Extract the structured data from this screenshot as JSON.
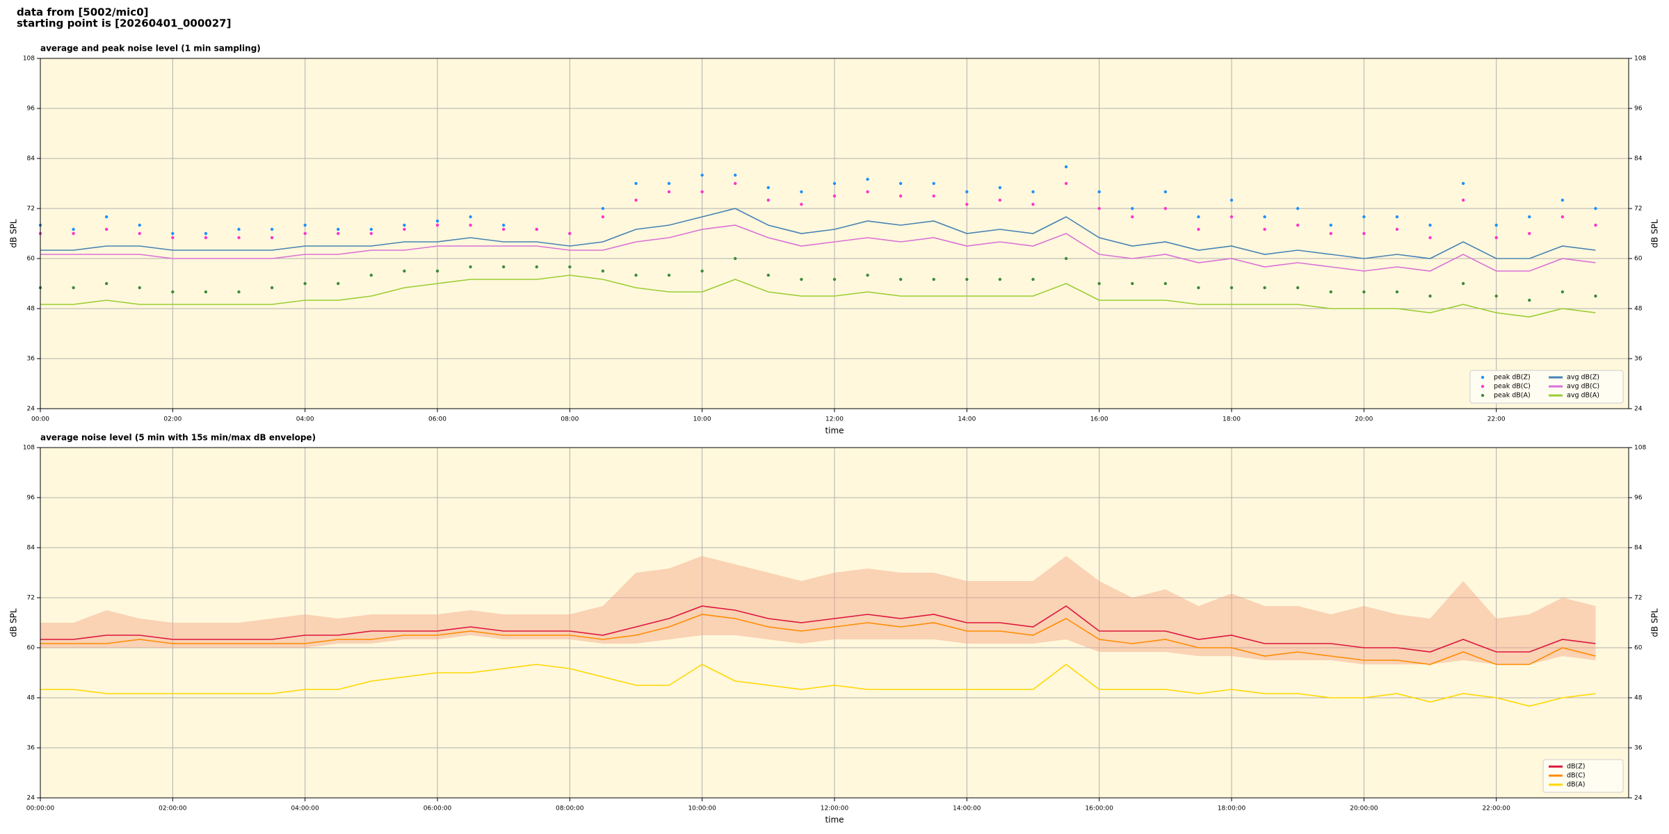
{
  "header": {
    "line1": "data from [5002/mic0]",
    "line2": "starting point is [20260401_000027]"
  },
  "chart_data": [
    {
      "type": "line",
      "title": "average and peak noise level (1 min sampling)",
      "xlabel": "time",
      "ylabel": "dB SPL",
      "xlim": [
        0,
        24
      ],
      "ylim": [
        24,
        108
      ],
      "yticks": [
        24,
        36,
        48,
        60,
        72,
        84,
        96,
        108
      ],
      "xticks": [
        {
          "value": 0,
          "label": "00:00"
        },
        {
          "value": 2,
          "label": "02:00"
        },
        {
          "value": 4,
          "label": "04:00"
        },
        {
          "value": 6,
          "label": "06:00"
        },
        {
          "value": 8,
          "label": "08:00"
        },
        {
          "value": 10,
          "label": "10:00"
        },
        {
          "value": 12,
          "label": "12:00"
        },
        {
          "value": 14,
          "label": "14:00"
        },
        {
          "value": 16,
          "label": "16:00"
        },
        {
          "value": 18,
          "label": "18:00"
        },
        {
          "value": 20,
          "label": "20:00"
        },
        {
          "value": 22,
          "label": "22:00"
        }
      ],
      "grid": true,
      "legend": "lower right",
      "legend_columns": 2,
      "x": [
        0,
        0.5,
        1,
        1.5,
        2,
        2.5,
        3,
        3.5,
        4,
        4.5,
        5,
        5.5,
        6,
        6.5,
        7,
        7.5,
        8,
        8.5,
        9,
        9.5,
        10,
        10.5,
        11,
        11.5,
        12,
        12.5,
        13,
        13.5,
        14,
        14.5,
        15,
        15.5,
        16,
        16.5,
        17,
        17.5,
        18,
        18.5,
        19,
        19.5,
        20,
        20.5,
        21,
        21.5,
        22,
        22.5,
        23,
        23.5
      ],
      "series": [
        {
          "name": "peak dB(Z)",
          "style": "points",
          "color": "#1e90ff",
          "values": [
            68,
            67,
            70,
            68,
            66,
            66,
            67,
            67,
            68,
            67,
            67,
            68,
            69,
            70,
            68,
            67,
            66,
            72,
            78,
            78,
            80,
            80,
            77,
            76,
            78,
            79,
            78,
            78,
            76,
            77,
            76,
            82,
            76,
            72,
            76,
            70,
            74,
            70,
            72,
            68,
            70,
            70,
            68,
            78,
            68,
            70,
            74,
            72
          ]
        },
        {
          "name": "peak dB(C)",
          "style": "points",
          "color": "#ff33cc",
          "values": [
            66,
            66,
            67,
            66,
            65,
            65,
            65,
            65,
            66,
            66,
            66,
            67,
            68,
            68,
            67,
            67,
            66,
            70,
            74,
            76,
            76,
            78,
            74,
            73,
            75,
            76,
            75,
            75,
            73,
            74,
            73,
            78,
            72,
            70,
            72,
            67,
            70,
            67,
            68,
            66,
            66,
            67,
            65,
            74,
            65,
            66,
            70,
            68
          ]
        },
        {
          "name": "peak dB(A)",
          "style": "points",
          "color": "#3d8a3d",
          "values": [
            53,
            53,
            54,
            53,
            52,
            52,
            52,
            53,
            54,
            54,
            56,
            57,
            57,
            58,
            58,
            58,
            58,
            57,
            56,
            56,
            57,
            60,
            56,
            55,
            55,
            56,
            55,
            55,
            55,
            55,
            55,
            60,
            54,
            54,
            54,
            53,
            53,
            53,
            53,
            52,
            52,
            52,
            51,
            54,
            51,
            50,
            52,
            51
          ]
        },
        {
          "name": "avg dB(Z)",
          "style": "line",
          "color": "#4682b4",
          "values": [
            62,
            62,
            63,
            63,
            62,
            62,
            62,
            62,
            63,
            63,
            63,
            64,
            64,
            65,
            64,
            64,
            63,
            64,
            67,
            68,
            70,
            72,
            68,
            66,
            67,
            69,
            68,
            69,
            66,
            67,
            66,
            70,
            65,
            63,
            64,
            62,
            63,
            61,
            62,
            61,
            60,
            61,
            60,
            64,
            60,
            60,
            63,
            62
          ]
        },
        {
          "name": "avg dB(C)",
          "style": "line",
          "color": "#da70d6",
          "values": [
            61,
            61,
            61,
            61,
            60,
            60,
            60,
            60,
            61,
            61,
            62,
            62,
            63,
            63,
            63,
            63,
            62,
            62,
            64,
            65,
            67,
            68,
            65,
            63,
            64,
            65,
            64,
            65,
            63,
            64,
            63,
            66,
            61,
            60,
            61,
            59,
            60,
            58,
            59,
            58,
            57,
            58,
            57,
            61,
            57,
            57,
            60,
            59
          ]
        },
        {
          "name": "avg dB(A)",
          "style": "line",
          "color": "#9acd32",
          "values": [
            49,
            49,
            50,
            49,
            49,
            49,
            49,
            49,
            50,
            50,
            51,
            53,
            54,
            55,
            55,
            55,
            56,
            55,
            53,
            52,
            52,
            55,
            52,
            51,
            51,
            52,
            51,
            51,
            51,
            51,
            51,
            54,
            50,
            50,
            50,
            49,
            49,
            49,
            49,
            48,
            48,
            48,
            47,
            49,
            47,
            46,
            48,
            47
          ]
        }
      ]
    },
    {
      "type": "line",
      "title": "average noise level (5 min with 15s min/max dB envelope)",
      "xlabel": "time",
      "ylabel": "dB SPL",
      "xlim": [
        0,
        24
      ],
      "ylim": [
        24,
        108
      ],
      "yticks": [
        24,
        36,
        48,
        60,
        72,
        84,
        96,
        108
      ],
      "xticks": [
        {
          "value": 0,
          "label": "00:00:00"
        },
        {
          "value": 2,
          "label": "02:00:00"
        },
        {
          "value": 4,
          "label": "04:00:00"
        },
        {
          "value": 6,
          "label": "06:00:00"
        },
        {
          "value": 8,
          "label": "08:00:00"
        },
        {
          "value": 10,
          "label": "10:00:00"
        },
        {
          "value": 12,
          "label": "12:00:00"
        },
        {
          "value": 14,
          "label": "14:00:00"
        },
        {
          "value": 16,
          "label": "16:00:00"
        },
        {
          "value": 18,
          "label": "18:00:00"
        },
        {
          "value": 20,
          "label": "20:00:00"
        },
        {
          "value": 22,
          "label": "22:00:00"
        }
      ],
      "grid": true,
      "legend": "lower right",
      "legend_columns": 1,
      "x": [
        0,
        0.5,
        1,
        1.5,
        2,
        2.5,
        3,
        3.5,
        4,
        4.5,
        5,
        5.5,
        6,
        6.5,
        7,
        7.5,
        8,
        8.5,
        9,
        9.5,
        10,
        10.5,
        11,
        11.5,
        12,
        12.5,
        13,
        13.5,
        14,
        14.5,
        15,
        15.5,
        16,
        16.5,
        17,
        17.5,
        18,
        18.5,
        19,
        19.5,
        20,
        20.5,
        21,
        21.5,
        22,
        22.5,
        23,
        23.5
      ],
      "envelope": {
        "color": "#f4a582",
        "low": [
          60,
          60,
          60,
          60,
          60,
          60,
          60,
          60,
          60,
          61,
          61,
          62,
          62,
          63,
          62,
          62,
          62,
          61,
          61,
          62,
          63,
          63,
          62,
          61,
          62,
          62,
          62,
          62,
          61,
          61,
          61,
          62,
          59,
          59,
          59,
          58,
          58,
          57,
          57,
          57,
          56,
          56,
          56,
          57,
          56,
          56,
          58,
          57
        ],
        "high": [
          66,
          66,
          69,
          67,
          66,
          66,
          66,
          67,
          68,
          67,
          68,
          68,
          68,
          69,
          68,
          68,
          68,
          70,
          78,
          79,
          82,
          80,
          78,
          76,
          78,
          79,
          78,
          78,
          76,
          76,
          76,
          82,
          76,
          72,
          74,
          70,
          73,
          70,
          70,
          68,
          70,
          68,
          67,
          76,
          67,
          68,
          72,
          70
        ]
      },
      "series": [
        {
          "name": "dB(Z)",
          "style": "line",
          "color": "#dc143c",
          "values": [
            62,
            62,
            63,
            63,
            62,
            62,
            62,
            62,
            63,
            63,
            64,
            64,
            64,
            65,
            64,
            64,
            64,
            63,
            65,
            67,
            70,
            69,
            67,
            66,
            67,
            68,
            67,
            68,
            66,
            66,
            65,
            70,
            64,
            64,
            64,
            62,
            63,
            61,
            61,
            61,
            60,
            60,
            59,
            62,
            59,
            59,
            62,
            61
          ]
        },
        {
          "name": "dB(C)",
          "style": "line",
          "color": "#ff8c00",
          "values": [
            61,
            61,
            61,
            62,
            61,
            61,
            61,
            61,
            61,
            62,
            62,
            63,
            63,
            64,
            63,
            63,
            63,
            62,
            63,
            65,
            68,
            67,
            65,
            64,
            65,
            66,
            65,
            66,
            64,
            64,
            63,
            67,
            62,
            61,
            62,
            60,
            60,
            58,
            59,
            58,
            57,
            57,
            56,
            59,
            56,
            56,
            60,
            58
          ]
        },
        {
          "name": "dB(A)",
          "style": "line",
          "color": "#ffd700",
          "values": [
            50,
            50,
            49,
            49,
            49,
            49,
            49,
            49,
            50,
            50,
            52,
            53,
            54,
            54,
            55,
            56,
            55,
            53,
            51,
            51,
            56,
            52,
            51,
            50,
            51,
            50,
            50,
            50,
            50,
            50,
            50,
            56,
            50,
            50,
            50,
            49,
            50,
            49,
            49,
            48,
            48,
            49,
            47,
            49,
            48,
            46,
            48,
            49
          ]
        }
      ]
    }
  ]
}
